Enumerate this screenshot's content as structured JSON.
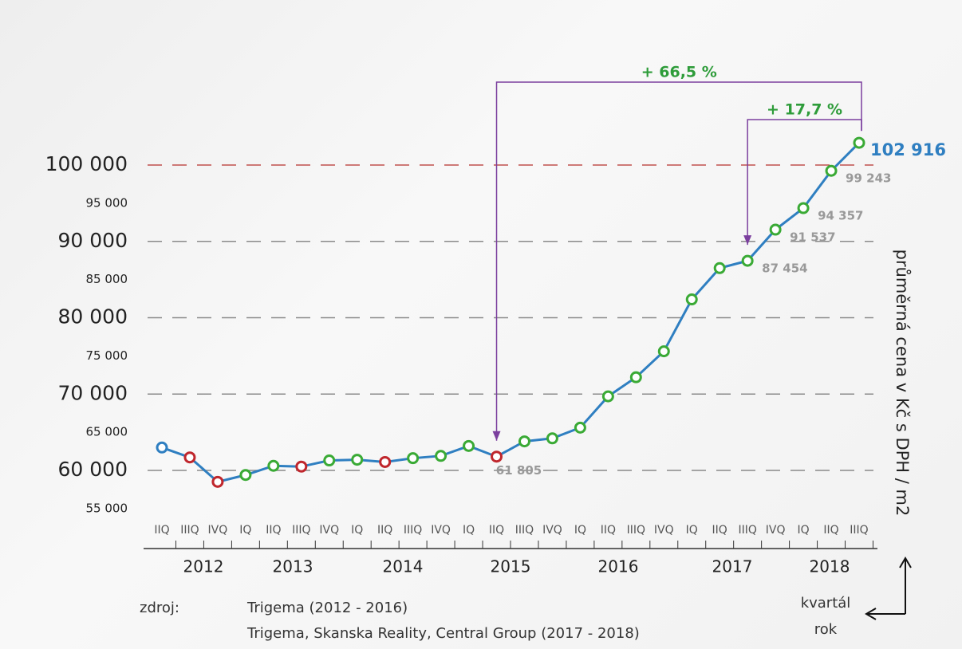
{
  "chart_data": {
    "type": "line",
    "y_axis_label": "průměrná cena v Kč s DPH / m2",
    "categories": [
      "IIQ",
      "IIIQ",
      "IVQ",
      "IQ",
      "IIQ",
      "IIIQ",
      "IVQ",
      "IQ",
      "IIQ",
      "IIIQ",
      "IVQ",
      "IQ",
      "IIQ",
      "IIIQ",
      "IVQ",
      "IQ",
      "IIQ",
      "IIIQ",
      "IVQ",
      "IQ",
      "IIQ",
      "IIIQ",
      "IVQ",
      "IQ",
      "IIQ",
      "IIIQ"
    ],
    "years": [
      "2012",
      "2013",
      "2014",
      "2015",
      "2016",
      "2017",
      "2018"
    ],
    "series": [
      {
        "name": null,
        "color": "#2f7fc1",
        "values": [
          63000,
          61700,
          58500,
          59400,
          60600,
          60500,
          61300,
          61400,
          61100,
          61600,
          61900,
          63200,
          61805,
          63800,
          64200,
          65600,
          69700,
          72200,
          75600,
          82400,
          86500,
          87454,
          91537,
          94357,
          99243,
          102916
        ],
        "value_labels": [
          null,
          null,
          null,
          null,
          null,
          null,
          null,
          null,
          null,
          null,
          null,
          null,
          "61 805",
          null,
          null,
          null,
          null,
          null,
          null,
          null,
          null,
          "87 454",
          "91 537",
          "94 357",
          "99 243",
          "102 916"
        ],
        "marker_colors": [
          "#2f7fc1",
          "#c0272d",
          "#c0272d",
          "#3aaa35",
          "#3aaa35",
          "#c0272d",
          "#3aaa35",
          "#3aaa35",
          "#c0272d",
          "#3aaa35",
          "#3aaa35",
          "#3aaa35",
          "#c0272d",
          "#3aaa35",
          "#3aaa35",
          "#3aaa35",
          "#3aaa35",
          "#3aaa35",
          "#3aaa35",
          "#3aaa35",
          "#3aaa35",
          "#3aaa35",
          "#3aaa35",
          "#3aaa35",
          "#3aaa35",
          "#3aaa35"
        ]
      }
    ],
    "ylim": [
      50000,
      105000
    ],
    "yticks": [
      {
        "value": 55000,
        "label": "55 000"
      },
      {
        "value": 60000,
        "label": "60 000"
      },
      {
        "value": 65000,
        "label": "65 000"
      },
      {
        "value": 70000,
        "label": "70 000"
      },
      {
        "value": 75000,
        "label": "75 000"
      },
      {
        "value": 80000,
        "label": "80 000"
      },
      {
        "value": 85000,
        "label": "85 000"
      },
      {
        "value": 90000,
        "label": "90 000"
      },
      {
        "value": 95000,
        "label": "95 000"
      },
      {
        "value": 100000,
        "label": "100 000"
      }
    ],
    "grid_ticks": [
      60000,
      70000,
      80000,
      90000,
      100000
    ],
    "highlight_tick": 100000,
    "annotations": [
      {
        "text": "+ 66,5 %",
        "from": 12,
        "to": 25
      },
      {
        "text": "+ 17,7 %",
        "from": 21,
        "to": 25
      }
    ],
    "source_label": "zdroj:",
    "sources": [
      "Trigema (2012 - 2016)",
      "Trigema, Skanska Reality, Central Group (2017 - 2018)"
    ],
    "axis_legend": [
      "kvartál",
      "rok"
    ]
  }
}
